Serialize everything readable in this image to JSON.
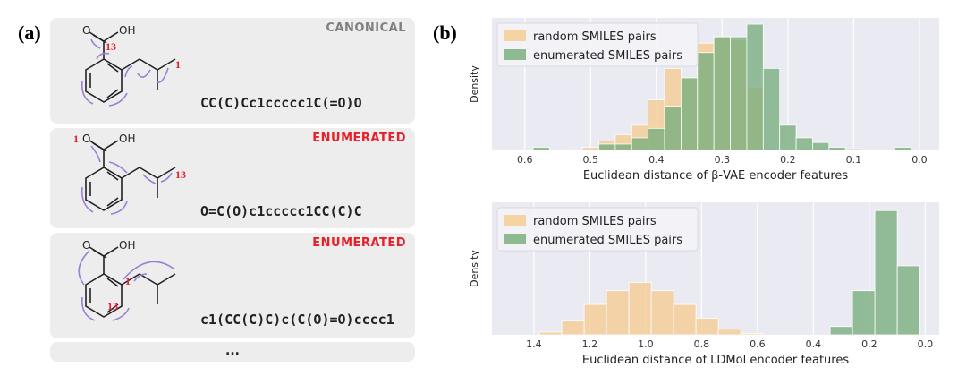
{
  "panel_a": {
    "label": "(a)",
    "cards": [
      {
        "tag": "CANONICAL",
        "tag_color": "#808080",
        "smiles": "CC(C)Cc1ccccc1C(=O)O",
        "num_a": "13",
        "num_b": "1"
      },
      {
        "tag": "ENUMERATED",
        "tag_color": "#e8202a",
        "smiles": "O=C(O)c1ccccc1CC(C)C",
        "num_a": "1",
        "num_b": "13"
      },
      {
        "tag": "ENUMERATED",
        "tag_color": "#e8202a",
        "smiles": "c1(CC(C)C)c(C(O)=O)cccc1",
        "num_a": "1",
        "num_b": "13"
      }
    ],
    "atom_label": "OH",
    "ellipsis": "..."
  },
  "panel_b": {
    "label": "(b)"
  },
  "colors": {
    "random": "#f5cc94",
    "enumerated": "#7aaf7e",
    "enumerated_alt": "#9ccab8",
    "plot_bg": "#eaeaf2",
    "red_number": "#e8202a"
  },
  "chart_data": [
    {
      "type": "bar",
      "title": "",
      "xlabel": "Euclidean distance of β-VAE encoder features",
      "ylabel": "Density",
      "xlim": [
        0.65,
        -0.03
      ],
      "x_reversed": true,
      "xticks": [
        0.6,
        0.5,
        0.4,
        0.3,
        0.2,
        0.1,
        0.0
      ],
      "xtick_labels": [
        "0.6",
        "0.5",
        "0.4",
        "0.3",
        "0.2",
        "0.1",
        "0.0"
      ],
      "legend": [
        "random SMILES pairs",
        "enumerated SMILES pairs"
      ],
      "legend_position": "top-left",
      "bin_width": 0.025,
      "series": [
        {
          "name": "random SMILES pairs",
          "bins": [
            0.525,
            0.5,
            0.475,
            0.45,
            0.425,
            0.4,
            0.375,
            0.35,
            0.325,
            0.3,
            0.275,
            0.25
          ],
          "values": [
            0.02,
            0.1,
            0.3,
            0.5,
            0.8,
            1.6,
            2.6,
            2.3,
            3.4,
            3.6,
            3.5,
            2.0
          ]
        },
        {
          "name": "enumerated SMILES pairs",
          "bins": [
            0.575,
            0.475,
            0.45,
            0.425,
            0.4,
            0.375,
            0.35,
            0.325,
            0.3,
            0.275,
            0.25,
            0.225,
            0.2,
            0.175,
            0.15,
            0.125,
            0.1,
            0.025
          ],
          "values": [
            0.1,
            0.2,
            0.2,
            0.4,
            0.7,
            1.4,
            2.3,
            3.1,
            3.6,
            3.6,
            4.0,
            2.6,
            0.8,
            0.4,
            0.25,
            0.1,
            0.05,
            0.1
          ]
        }
      ]
    },
    {
      "type": "bar",
      "title": "",
      "xlabel": "Euclidean distance of LDMol encoder features",
      "ylabel": "Density",
      "xlim": [
        1.55,
        -0.05
      ],
      "x_reversed": true,
      "xticks": [
        1.4,
        1.2,
        1.0,
        0.8,
        0.6,
        0.4,
        0.2,
        0.0
      ],
      "xtick_labels": [
        "1.4",
        "1.2",
        "1.0",
        "0.8",
        "0.6",
        "0.4",
        "0.2",
        "0.0"
      ],
      "legend": [
        "random SMILES pairs",
        "enumerated SMILES pairs"
      ],
      "legend_position": "top-left",
      "bin_width": 0.08,
      "series": [
        {
          "name": "random SMILES pairs",
          "bins": [
            1.34,
            1.26,
            1.18,
            1.1,
            1.02,
            0.94,
            0.86,
            0.78,
            0.7,
            0.62
          ],
          "values": [
            0.1,
            0.5,
            1.1,
            1.6,
            1.9,
            1.6,
            1.1,
            0.6,
            0.2,
            0.05
          ]
        },
        {
          "name": "enumerated SMILES pairs",
          "bins": [
            0.3,
            0.22,
            0.14,
            0.06
          ],
          "values": [
            0.3,
            1.6,
            4.5,
            2.5
          ]
        }
      ]
    }
  ]
}
